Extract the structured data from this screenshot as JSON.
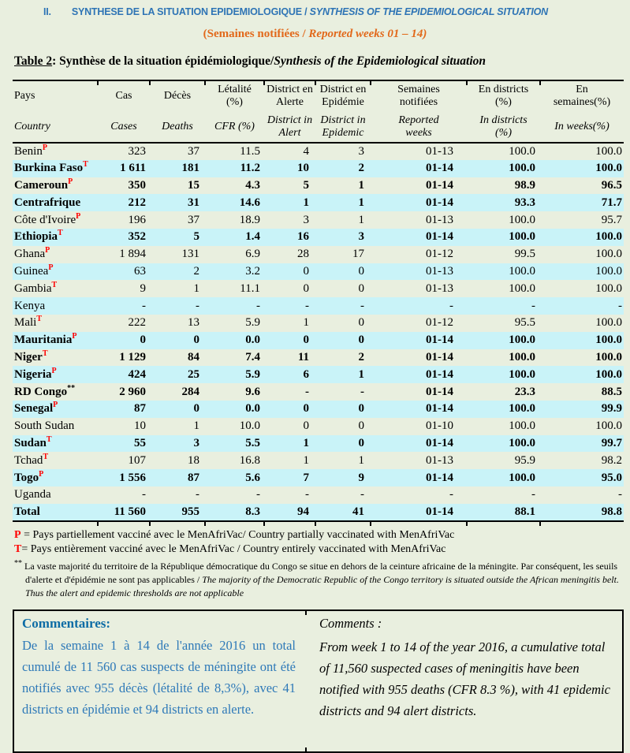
{
  "palette": {
    "page_bg": "#e9efdf",
    "row_highlight": "#c9f3f8",
    "title_blue": "#2e74b5",
    "subtitle_orange": "#e2691b",
    "comment_heading_blue": "#0d6ca5",
    "comment_body_blue": "#2e79b8",
    "superscript_red": "#ff0000"
  },
  "header": {
    "numeral": "II.",
    "title_fr": "SYNTHESE DE LA SITUATION EPIDEMIOLOGIQUE / ",
    "title_en": "SYNTHESIS OF THE EPIDEMIOLOGICAL SITUATION",
    "subtitle_fr": "(Semaines notifiées / ",
    "subtitle_en": "Reported weeks 01 – 14)"
  },
  "caption": {
    "label": "Table 2",
    "fr": ": Synthèse de la situation épidémiologique/",
    "en": "Synthesis of the Epidemiological situation"
  },
  "table": {
    "columns": [
      {
        "fr": "Pays",
        "en": "Country"
      },
      {
        "fr": "Cas",
        "en": "Cases"
      },
      {
        "fr": "Décès",
        "en": "Deaths"
      },
      {
        "fr": "Létalité\n(%)",
        "en": "CFR (%)"
      },
      {
        "fr": "District en\nAlerte",
        "en": "District in\nAlert"
      },
      {
        "fr": "District en\nEpidémie",
        "en": "District in\nEpidemic"
      },
      {
        "fr": "Semaines\nnotifiées",
        "en": "Reported\nweeks"
      },
      {
        "fr": "En districts\n(%)",
        "en": "In districts\n(%)"
      },
      {
        "fr": "En\nsemaines(%)",
        "en": "In weeks(%)"
      }
    ],
    "rows": [
      {
        "country": "Benin",
        "sup": "P",
        "sup_color": "red",
        "values": [
          "323",
          "37",
          "11.5",
          "4",
          "3",
          "01-13",
          "100.0",
          "100.0"
        ],
        "bold": false,
        "shaded": false
      },
      {
        "country": "Burkina Faso",
        "sup": "T",
        "sup_color": "red",
        "values": [
          "1 611",
          "181",
          "11.2",
          "10",
          "2",
          "01-14",
          "100.0",
          "100.0"
        ],
        "bold": true,
        "shaded": true
      },
      {
        "country": "Cameroun",
        "sup": "P",
        "sup_color": "red",
        "values": [
          "350",
          "15",
          "4.3",
          "5",
          "1",
          "01-14",
          "98.9",
          "96.5"
        ],
        "bold": true,
        "shaded": false
      },
      {
        "country": "Centrafrique",
        "sup": "",
        "sup_color": "",
        "values": [
          "212",
          "31",
          "14.6",
          "1",
          "1",
          "01-14",
          "93.3",
          "71.7"
        ],
        "bold": true,
        "shaded": true
      },
      {
        "country": "Côte d'Ivoire",
        "sup": "P",
        "sup_color": "red",
        "values": [
          "196",
          "37",
          "18.9",
          "3",
          "1",
          "01-13",
          "100.0",
          "95.7"
        ],
        "bold": false,
        "shaded": false
      },
      {
        "country": "Ethiopia",
        "sup": "T",
        "sup_color": "red",
        "values": [
          "352",
          "5",
          "1.4",
          "16",
          "3",
          "01-14",
          "100.0",
          "100.0"
        ],
        "bold": true,
        "shaded": true
      },
      {
        "country": "Ghana",
        "sup": "P",
        "sup_color": "red",
        "values": [
          "1 894",
          "131",
          "6.9",
          "28",
          "17",
          "01-12",
          "99.5",
          "100.0"
        ],
        "bold": false,
        "shaded": false
      },
      {
        "country": "Guinea",
        "sup": "P",
        "sup_color": "red",
        "values": [
          "63",
          "2",
          "3.2",
          "0",
          "0",
          "01-13",
          "100.0",
          "100.0"
        ],
        "bold": false,
        "shaded": true
      },
      {
        "country": "Gambia",
        "sup": "T",
        "sup_color": "red",
        "values": [
          "9",
          "1",
          "11.1",
          "0",
          "0",
          "01-13",
          "100.0",
          "100.0"
        ],
        "bold": false,
        "shaded": false
      },
      {
        "country": "Kenya",
        "sup": "",
        "sup_color": "",
        "values": [
          "-",
          "-",
          "-",
          "-",
          "-",
          "-",
          "-",
          "-"
        ],
        "bold": false,
        "shaded": true
      },
      {
        "country": "Mali",
        "sup": "T",
        "sup_color": "red",
        "values": [
          "222",
          "13",
          "5.9",
          "1",
          "0",
          "01-12",
          "95.5",
          "100.0"
        ],
        "bold": false,
        "shaded": false
      },
      {
        "country": "Mauritania",
        "sup": "P",
        "sup_color": "red",
        "values": [
          "0",
          "0",
          "0.0",
          "0",
          "0",
          "01-14",
          "100.0",
          "100.0"
        ],
        "bold": true,
        "shaded": true
      },
      {
        "country": "Niger",
        "sup": "T",
        "sup_color": "red",
        "values": [
          "1 129",
          "84",
          "7.4",
          "11",
          "2",
          "01-14",
          "100.0",
          "100.0"
        ],
        "bold": true,
        "shaded": false
      },
      {
        "country": "Nigeria",
        "sup": "P",
        "sup_color": "red",
        "values": [
          "424",
          "25",
          "5.9",
          "6",
          "1",
          "01-14",
          "100.0",
          "100.0"
        ],
        "bold": true,
        "shaded": true
      },
      {
        "country": "RD Congo",
        "sup": "**",
        "sup_color": "black",
        "values": [
          "2 960",
          "284",
          "9.6",
          "-",
          "-",
          "01-14",
          "23.3",
          "88.5"
        ],
        "bold": true,
        "shaded": false
      },
      {
        "country": "Senegal",
        "sup": "P",
        "sup_color": "red",
        "values": [
          "87",
          "0",
          "0.0",
          "0",
          "0",
          "01-14",
          "100.0",
          "99.9"
        ],
        "bold": true,
        "shaded": true
      },
      {
        "country": "South Sudan",
        "sup": "",
        "sup_color": "",
        "values": [
          "10",
          "1",
          "10.0",
          "0",
          "0",
          "01-10",
          "100.0",
          "100.0"
        ],
        "bold": false,
        "shaded": false
      },
      {
        "country": "Sudan",
        "sup": "T",
        "sup_color": "red",
        "values": [
          "55",
          "3",
          "5.5",
          "1",
          "0",
          "01-14",
          "100.0",
          "99.7"
        ],
        "bold": true,
        "shaded": true
      },
      {
        "country": "Tchad",
        "sup": "T",
        "sup_color": "red",
        "values": [
          "107",
          "18",
          "16.8",
          "1",
          "1",
          "01-13",
          "95.9",
          "98.2"
        ],
        "bold": false,
        "shaded": false
      },
      {
        "country": "Togo",
        "sup": "P",
        "sup_color": "red",
        "values": [
          "1 556",
          "87",
          "5.6",
          "7",
          "9",
          "01-14",
          "100.0",
          "95.0"
        ],
        "bold": true,
        "shaded": true
      },
      {
        "country": "Uganda",
        "sup": "",
        "sup_color": "",
        "values": [
          "-",
          "-",
          "-",
          "-",
          "-",
          "-",
          "-",
          "-"
        ],
        "bold": false,
        "shaded": false
      }
    ],
    "total": {
      "country": "Total",
      "sup": "",
      "sup_color": "",
      "values": [
        "11 560",
        "955",
        "8.3",
        "94",
        "41",
        "01-14",
        "88.1",
        "98.8"
      ],
      "bold": true,
      "shaded": true
    }
  },
  "footnotes": {
    "p_mark": "P",
    "p_text": " = Pays partiellement vacciné avec le MenAfriVac/ Country partially  vaccinated with MenAfriVac",
    "t_mark": "T",
    "t_text": "= Pays entièrement vacciné avec le MenAfriVac / Country entirely  vaccinated with MenAfriVac",
    "star_mark": "**",
    "star_fr": " La vaste majorité du territoire de la République démocratique du Congo se situe en dehors de la ceinture africaine de la méningite. Par conséquent, les seuils d'alerte et d'épidémie ne sont pas applicables / ",
    "star_en": "The majority of the Democratic Republic of the Congo territory is situated outside the African meningitis belt. Thus the alert and epidemic thresholds are not applicable"
  },
  "comments": {
    "fr_title": "Commentaires:",
    "fr_body": "De la semaine 1 à 14 de l'année 2016 un total cumulé de 11 560 cas suspects de méningite ont été notifiés avec 955 décès (létalité de 8,3%), avec 41 districts en épidémie et 94 districts en alerte.",
    "en_title": "Comments :",
    "en_body": "From week 1 to 14 of the year 2016, a cumulative total of 11,560 suspected cases of meningitis have been notified with 955 deaths (CFR 8.3 %), with 41 epidemic districts and 94 alert districts."
  }
}
